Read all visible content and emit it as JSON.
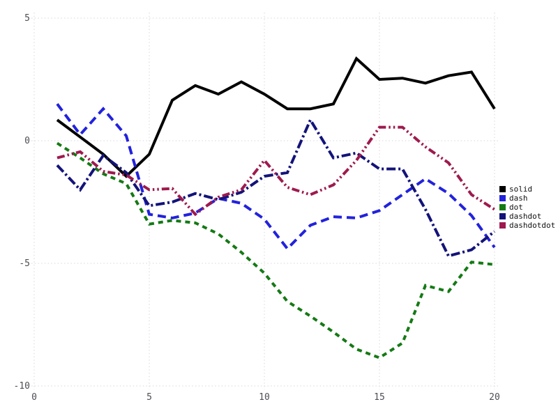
{
  "chart_data": {
    "type": "line",
    "title": "",
    "xlabel": "",
    "ylabel": "",
    "xlim": [
      0,
      20
    ],
    "ylim": [
      -10,
      5
    ],
    "x_ticks": [
      0,
      5,
      10,
      15,
      20
    ],
    "y_ticks": [
      5,
      0,
      -5,
      -10
    ],
    "grid": "dotted",
    "grid_color": "#d7d7df",
    "legend_position": "right",
    "x": [
      1,
      2,
      3,
      4,
      5,
      6,
      7,
      8,
      9,
      10,
      11,
      12,
      13,
      14,
      15,
      16,
      17,
      18,
      19,
      20
    ],
    "series": [
      {
        "name": "solid",
        "color": "#000000",
        "dash": "solid",
        "values": [
          0.85,
          0.15,
          -0.55,
          -1.45,
          -0.55,
          1.65,
          2.25,
          1.9,
          2.4,
          1.9,
          1.3,
          1.3,
          1.5,
          3.35,
          2.5,
          2.55,
          2.35,
          2.65,
          2.8,
          1.3
        ]
      },
      {
        "name": "dash",
        "color": "#2222dd",
        "dash": "dash",
        "values": [
          1.5,
          0.25,
          1.3,
          0.2,
          -3.0,
          -3.15,
          -2.95,
          -2.35,
          -2.55,
          -3.2,
          -4.4,
          -3.45,
          -3.1,
          -3.15,
          -2.85,
          -2.2,
          -1.55,
          -2.15,
          -3.05,
          -4.35
        ]
      },
      {
        "name": "dot",
        "color": "#147a14",
        "dash": "dot",
        "values": [
          -0.1,
          -0.7,
          -1.35,
          -1.75,
          -3.4,
          -3.25,
          -3.35,
          -3.8,
          -4.55,
          -5.4,
          -6.55,
          -7.15,
          -7.8,
          -8.5,
          -8.85,
          -8.25,
          -5.9,
          -6.15,
          -4.95,
          -5.05
        ]
      },
      {
        "name": "dashdot",
        "color": "#13137a",
        "dash": "dashdot",
        "values": [
          -1.0,
          -2.0,
          -0.6,
          -1.3,
          -2.65,
          -2.5,
          -2.15,
          -2.4,
          -2.1,
          -1.45,
          -1.3,
          0.85,
          -0.7,
          -0.5,
          -1.15,
          -1.15,
          -2.8,
          -4.7,
          -4.45,
          -3.7
        ]
      },
      {
        "name": "dashdotdot",
        "color": "#9e1a4e",
        "dash": "dashdotdot",
        "values": [
          -0.7,
          -0.45,
          -1.25,
          -1.4,
          -2.0,
          -1.95,
          -3.0,
          -2.3,
          -2.0,
          -0.8,
          -1.9,
          -2.2,
          -1.8,
          -0.8,
          0.55,
          0.55,
          -0.25,
          -0.9,
          -2.2,
          -2.8
        ]
      }
    ]
  },
  "axes": {
    "x_tick_labels": [
      "0",
      "5",
      "10",
      "15",
      "20"
    ],
    "y_tick_labels": [
      "5",
      "0",
      "-5",
      "-10"
    ]
  },
  "legend": {
    "items": [
      {
        "label": "solid"
      },
      {
        "label": "dash"
      },
      {
        "label": "dot"
      },
      {
        "label": "dashdot"
      },
      {
        "label": "dashdotdot"
      }
    ]
  }
}
